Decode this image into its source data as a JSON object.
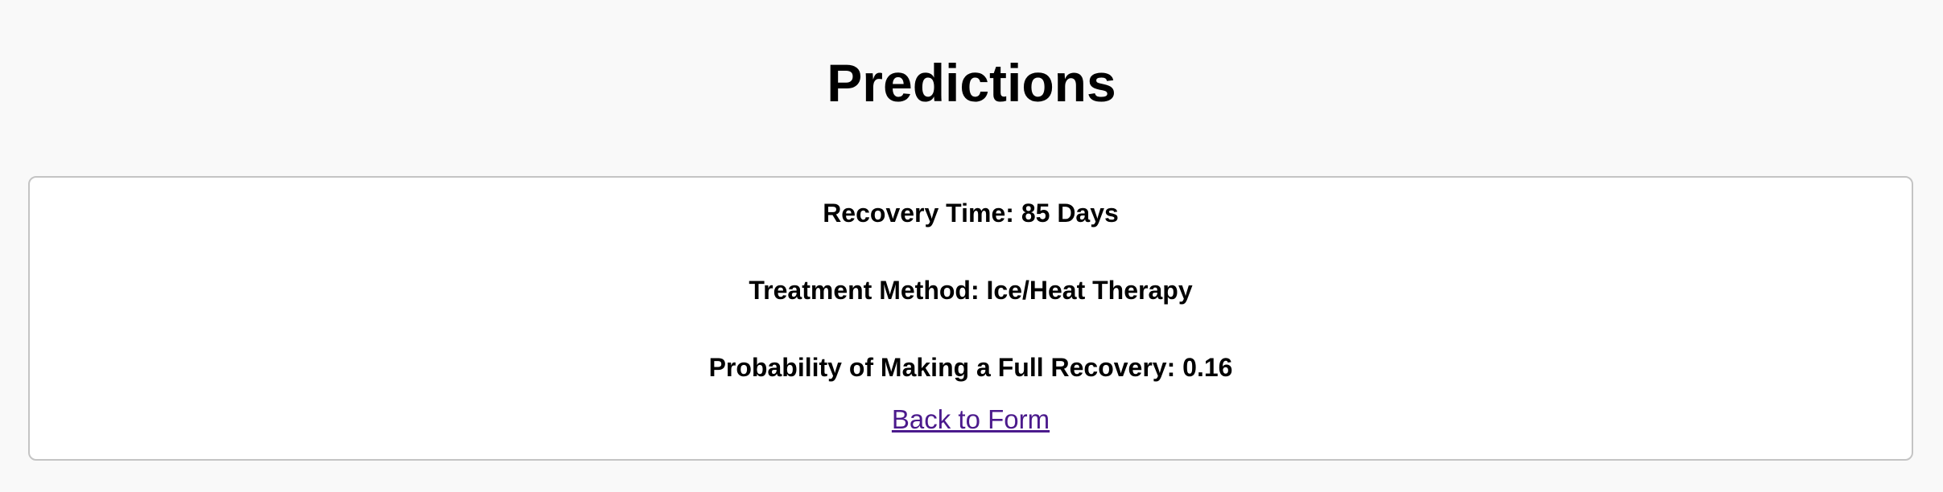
{
  "page": {
    "title": "Predictions"
  },
  "predictions": {
    "recovery_time": "Recovery Time: 85 Days",
    "treatment_method": "Treatment Method: Ice/Heat Therapy",
    "full_recovery_probability": "Probability of Making a Full Recovery: 0.16"
  },
  "navigation": {
    "back_link_label": "Back to Form"
  },
  "colors": {
    "background": "#f9f9f9",
    "card_background": "#ffffff",
    "card_border": "#c4c4c4",
    "link": "#4b1a8c"
  }
}
